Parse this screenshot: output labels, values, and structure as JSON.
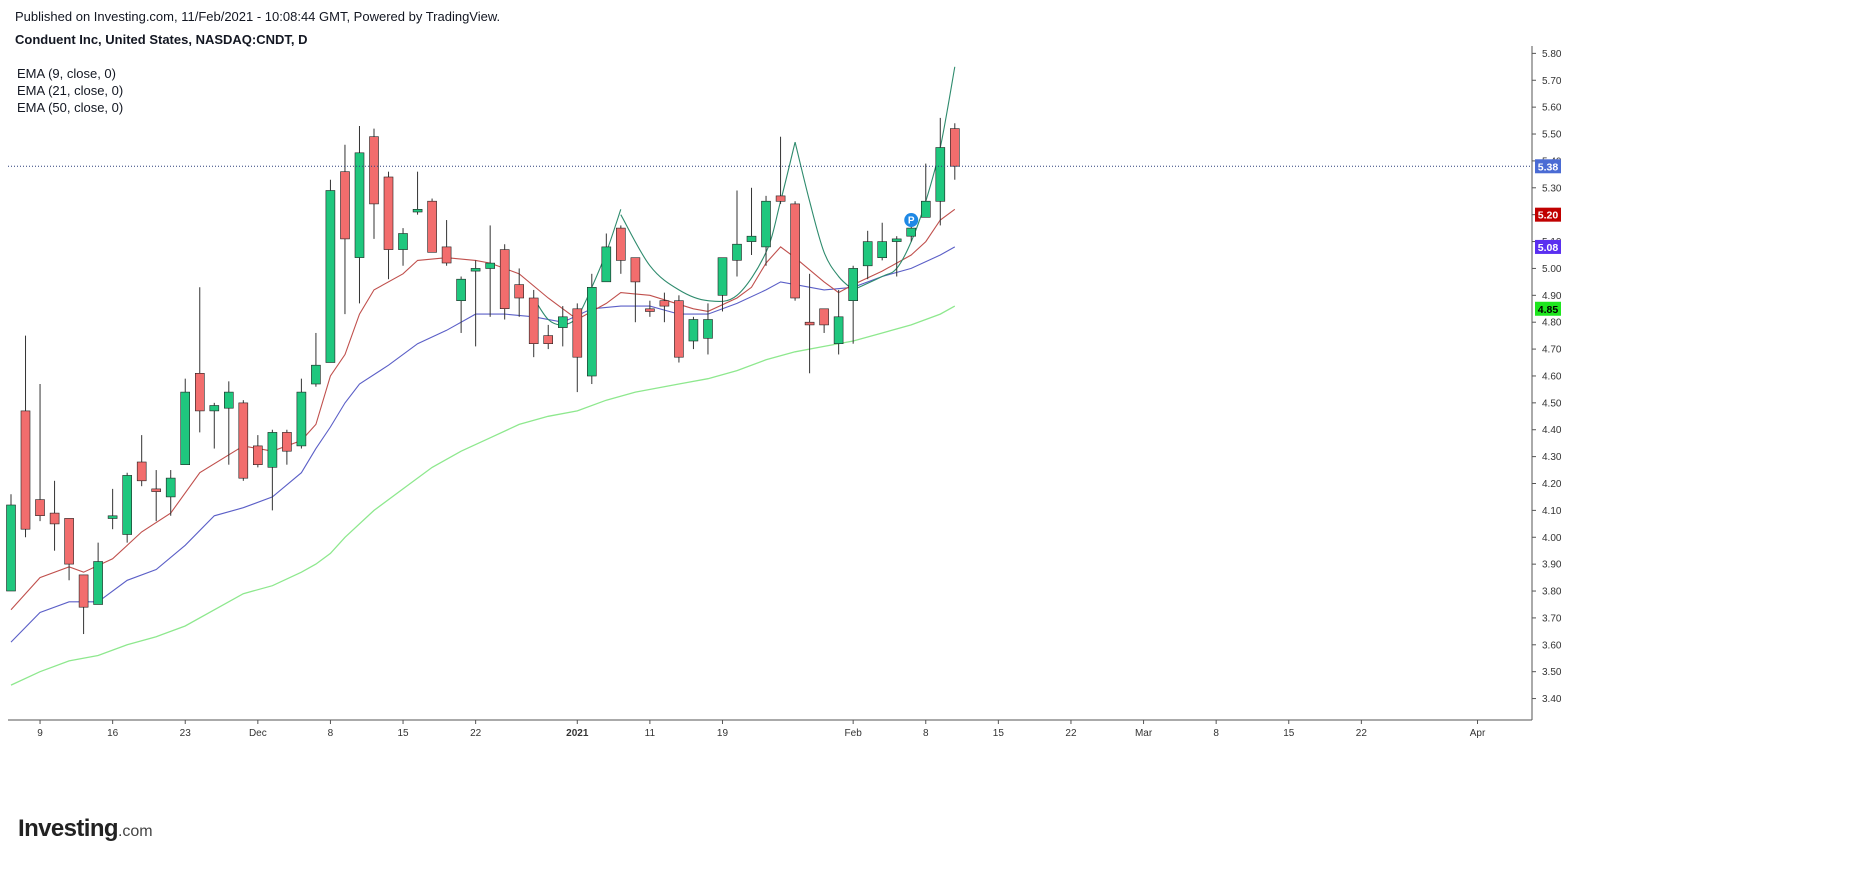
{
  "header": {
    "published": "Published on Investing.com, 11/Feb/2021 - 10:08:44 GMT, Powered by TradingView.",
    "title": "Conduent Inc, United States, NASDAQ:CNDT, D"
  },
  "legend": [
    {
      "label": "EMA (9, close, 0)",
      "color": "#2e8b6d"
    },
    {
      "label": "EMA (21, close, 0)",
      "color": "#c0504d"
    },
    {
      "label": "EMA (50, close, 0)",
      "color": "#5b5fc7"
    }
  ],
  "logo": {
    "main": "Investing",
    "suffix": ".com"
  },
  "colors": {
    "up": "#1fc77e",
    "down": "#f26d6d",
    "wick": "#333333",
    "ema9": "#2e8b6d",
    "ema21": "#c0504d",
    "ema50": "#5b5fc7",
    "ema200": "#8ee88e",
    "last_line": "#2c3e7a"
  },
  "chart_data": {
    "type": "candlestick",
    "title": "Conduent Inc, United States, NASDAQ:CNDT, D",
    "ylim": [
      3.35,
      5.82
    ],
    "y_ticks": [
      3.4,
      3.5,
      3.6,
      3.7,
      3.8,
      3.9,
      4.0,
      4.1,
      4.2,
      4.3,
      4.4,
      4.5,
      4.6,
      4.7,
      4.8,
      4.9,
      5.0,
      5.1,
      5.2,
      5.3,
      5.4,
      5.5,
      5.6,
      5.7,
      5.8
    ],
    "x_labels": [
      {
        "label": "9",
        "i": 2,
        "bold": false
      },
      {
        "label": "16",
        "i": 7,
        "bold": false
      },
      {
        "label": "23",
        "i": 12,
        "bold": false
      },
      {
        "label": "Dec",
        "i": 17,
        "bold": false
      },
      {
        "label": "8",
        "i": 22,
        "bold": false
      },
      {
        "label": "15",
        "i": 27,
        "bold": false
      },
      {
        "label": "22",
        "i": 32,
        "bold": false
      },
      {
        "label": "2021",
        "i": 39,
        "bold": true
      },
      {
        "label": "11",
        "i": 44,
        "bold": false
      },
      {
        "label": "19",
        "i": 49,
        "bold": false
      },
      {
        "label": "Feb",
        "i": 58,
        "bold": false
      },
      {
        "label": "8",
        "i": 63,
        "bold": false
      },
      {
        "label": "15",
        "i": 68,
        "bold": false
      },
      {
        "label": "22",
        "i": 73,
        "bold": false
      },
      {
        "label": "Mar",
        "i": 78,
        "bold": false
      },
      {
        "label": "8",
        "i": 83,
        "bold": false
      },
      {
        "label": "15",
        "i": 88,
        "bold": false
      },
      {
        "label": "22",
        "i": 93,
        "bold": false
      },
      {
        "label": "Apr",
        "i": 101,
        "bold": false
      }
    ],
    "candles": [
      {
        "o": 3.8,
        "h": 4.16,
        "l": 3.8,
        "c": 4.12
      },
      {
        "o": 4.47,
        "h": 4.75,
        "l": 4.0,
        "c": 4.03
      },
      {
        "o": 4.14,
        "h": 4.57,
        "l": 4.06,
        "c": 4.08
      },
      {
        "o": 4.09,
        "h": 4.21,
        "l": 3.95,
        "c": 4.05
      },
      {
        "o": 4.07,
        "h": 4.07,
        "l": 3.84,
        "c": 3.9
      },
      {
        "o": 3.86,
        "h": 3.86,
        "l": 3.64,
        "c": 3.74
      },
      {
        "o": 3.75,
        "h": 3.98,
        "l": 3.75,
        "c": 3.91
      },
      {
        "o": 4.07,
        "h": 4.18,
        "l": 4.03,
        "c": 4.08
      },
      {
        "o": 4.01,
        "h": 4.24,
        "l": 3.98,
        "c": 4.23
      },
      {
        "o": 4.28,
        "h": 4.38,
        "l": 4.19,
        "c": 4.21
      },
      {
        "o": 4.18,
        "h": 4.25,
        "l": 4.06,
        "c": 4.17
      },
      {
        "o": 4.15,
        "h": 4.25,
        "l": 4.08,
        "c": 4.22
      },
      {
        "o": 4.27,
        "h": 4.59,
        "l": 4.27,
        "c": 4.54
      },
      {
        "o": 4.61,
        "h": 4.93,
        "l": 4.39,
        "c": 4.47
      },
      {
        "o": 4.47,
        "h": 4.5,
        "l": 4.33,
        "c": 4.49
      },
      {
        "o": 4.48,
        "h": 4.58,
        "l": 4.27,
        "c": 4.54
      },
      {
        "o": 4.5,
        "h": 4.51,
        "l": 4.21,
        "c": 4.22
      },
      {
        "o": 4.34,
        "h": 4.38,
        "l": 4.26,
        "c": 4.27
      },
      {
        "o": 4.26,
        "h": 4.4,
        "l": 4.1,
        "c": 4.39
      },
      {
        "o": 4.39,
        "h": 4.4,
        "l": 4.27,
        "c": 4.32
      },
      {
        "o": 4.34,
        "h": 4.59,
        "l": 4.33,
        "c": 4.54
      },
      {
        "o": 4.57,
        "h": 4.76,
        "l": 4.56,
        "c": 4.64
      },
      {
        "o": 4.65,
        "h": 5.33,
        "l": 4.65,
        "c": 5.29
      },
      {
        "o": 5.36,
        "h": 5.46,
        "l": 4.83,
        "c": 5.11
      },
      {
        "o": 5.04,
        "h": 5.53,
        "l": 4.87,
        "c": 5.43
      },
      {
        "o": 5.49,
        "h": 5.52,
        "l": 5.11,
        "c": 5.24
      },
      {
        "o": 5.34,
        "h": 5.36,
        "l": 4.96,
        "c": 5.07
      },
      {
        "o": 5.07,
        "h": 5.15,
        "l": 5.01,
        "c": 5.13
      },
      {
        "o": 5.21,
        "h": 5.36,
        "l": 5.2,
        "c": 5.22
      },
      {
        "o": 5.25,
        "h": 5.26,
        "l": 5.06,
        "c": 5.06
      },
      {
        "o": 5.08,
        "h": 5.18,
        "l": 5.01,
        "c": 5.02
      },
      {
        "o": 4.88,
        "h": 4.97,
        "l": 4.76,
        "c": 4.96
      },
      {
        "o": 4.99,
        "h": 5.03,
        "l": 4.71,
        "c": 5.0
      },
      {
        "o": 5.0,
        "h": 5.16,
        "l": 4.82,
        "c": 5.02
      },
      {
        "o": 5.07,
        "h": 5.09,
        "l": 4.81,
        "c": 4.85
      },
      {
        "o": 4.94,
        "h": 5.0,
        "l": 4.82,
        "c": 4.89
      },
      {
        "o": 4.89,
        "h": 4.92,
        "l": 4.67,
        "c": 4.72
      },
      {
        "o": 4.75,
        "h": 4.79,
        "l": 4.7,
        "c": 4.72
      },
      {
        "o": 4.78,
        "h": 4.86,
        "l": 4.71,
        "c": 4.82
      },
      {
        "o": 4.85,
        "h": 4.87,
        "l": 4.54,
        "c": 4.67
      },
      {
        "o": 4.6,
        "h": 4.98,
        "l": 4.57,
        "c": 4.93
      },
      {
        "o": 4.95,
        "h": 5.13,
        "l": 4.95,
        "c": 5.08
      },
      {
        "o": 5.15,
        "h": 5.16,
        "l": 4.98,
        "c": 5.03
      },
      {
        "o": 5.04,
        "h": 5.04,
        "l": 4.8,
        "c": 4.95
      },
      {
        "o": 4.85,
        "h": 4.88,
        "l": 4.82,
        "c": 4.84
      },
      {
        "o": 4.88,
        "h": 4.91,
        "l": 4.8,
        "c": 4.86
      },
      {
        "o": 4.88,
        "h": 4.9,
        "l": 4.65,
        "c": 4.67
      },
      {
        "o": 4.73,
        "h": 4.82,
        "l": 4.7,
        "c": 4.81
      },
      {
        "o": 4.74,
        "h": 4.87,
        "l": 4.68,
        "c": 4.81
      },
      {
        "o": 4.9,
        "h": 5.04,
        "l": 4.84,
        "c": 5.04
      },
      {
        "o": 5.03,
        "h": 5.29,
        "l": 4.97,
        "c": 5.09
      },
      {
        "o": 5.1,
        "h": 5.3,
        "l": 5.05,
        "c": 5.12
      },
      {
        "o": 5.08,
        "h": 5.27,
        "l": 5.01,
        "c": 5.25
      },
      {
        "o": 5.27,
        "h": 5.49,
        "l": 5.24,
        "c": 5.25
      },
      {
        "o": 5.24,
        "h": 5.25,
        "l": 4.88,
        "c": 4.89
      },
      {
        "o": 4.8,
        "h": 4.98,
        "l": 4.61,
        "c": 4.79
      },
      {
        "o": 4.85,
        "h": 4.85,
        "l": 4.76,
        "c": 4.79
      },
      {
        "o": 4.72,
        "h": 4.92,
        "l": 4.68,
        "c": 4.82
      },
      {
        "o": 4.88,
        "h": 5.01,
        "l": 4.72,
        "c": 5.0
      },
      {
        "o": 5.01,
        "h": 5.14,
        "l": 4.96,
        "c": 5.1
      },
      {
        "o": 5.04,
        "h": 5.17,
        "l": 5.03,
        "c": 5.1
      },
      {
        "o": 5.1,
        "h": 5.12,
        "l": 4.97,
        "c": 5.11
      },
      {
        "o": 5.12,
        "h": 5.19,
        "l": 5.1,
        "c": 5.15
      },
      {
        "o": 5.19,
        "h": 5.39,
        "l": 5.19,
        "c": 5.25
      },
      {
        "o": 5.25,
        "h": 5.56,
        "l": 5.16,
        "c": 5.45
      },
      {
        "o": 5.52,
        "h": 5.54,
        "l": 5.33,
        "c": 5.38
      }
    ],
    "ema9": [
      [
        0,
        3.73
      ],
      [
        2,
        3.85
      ],
      [
        4,
        3.89
      ],
      [
        5,
        3.87
      ],
      [
        7,
        3.92
      ],
      [
        9,
        4.02
      ],
      [
        11,
        4.09
      ],
      [
        13,
        4.24
      ],
      [
        16,
        4.34
      ],
      [
        18,
        4.32
      ],
      [
        20,
        4.36
      ],
      [
        21,
        4.42
      ],
      [
        22,
        4.6
      ],
      [
        23,
        4.68
      ],
      [
        24,
        4.83
      ],
      [
        25,
        4.92
      ],
      [
        27,
        4.98
      ],
      [
        28,
        5.03
      ],
      [
        30,
        5.04
      ],
      [
        32,
        5.03
      ],
      [
        33,
        5.02
      ],
      [
        35,
        4.98
      ],
      [
        37,
        4.89
      ],
      [
        38,
        4.85
      ],
      [
        39,
        4.81
      ],
      [
        40,
        4.84
      ],
      [
        41,
        4.87
      ],
      [
        42,
        4.91
      ],
      [
        44,
        4.9
      ],
      [
        47,
        4.85
      ],
      [
        48,
        4.84
      ],
      [
        50,
        4.89
      ],
      [
        51,
        4.93
      ],
      [
        52,
        5.02
      ],
      [
        53,
        5.08
      ],
      [
        54,
        5.04
      ],
      [
        56,
        4.95
      ],
      [
        57,
        4.91
      ],
      [
        58,
        4.94
      ],
      [
        60,
        4.99
      ],
      [
        62,
        5.05
      ],
      [
        63,
        5.1
      ],
      [
        64,
        5.18
      ],
      [
        65,
        5.22
      ]
    ],
    "ema21": [
      [
        0,
        3.61
      ],
      [
        2,
        3.72
      ],
      [
        4,
        3.76
      ],
      [
        6,
        3.76
      ],
      [
        8,
        3.84
      ],
      [
        10,
        3.88
      ],
      [
        12,
        3.97
      ],
      [
        14,
        4.08
      ],
      [
        16,
        4.11
      ],
      [
        18,
        4.15
      ],
      [
        20,
        4.24
      ],
      [
        21,
        4.33
      ],
      [
        22,
        4.41
      ],
      [
        23,
        4.5
      ],
      [
        24,
        4.57
      ],
      [
        26,
        4.64
      ],
      [
        28,
        4.72
      ],
      [
        30,
        4.77
      ],
      [
        32,
        4.83
      ],
      [
        34,
        4.83
      ],
      [
        36,
        4.82
      ],
      [
        38,
        4.8
      ],
      [
        40,
        4.85
      ],
      [
        42,
        4.86
      ],
      [
        44,
        4.86
      ],
      [
        46,
        4.83
      ],
      [
        48,
        4.83
      ],
      [
        50,
        4.87
      ],
      [
        52,
        4.92
      ],
      [
        53,
        4.95
      ],
      [
        54,
        4.94
      ],
      [
        56,
        4.92
      ],
      [
        58,
        4.93
      ],
      [
        60,
        4.97
      ],
      [
        62,
        5.0
      ],
      [
        64,
        5.05
      ],
      [
        65,
        5.08
      ]
    ],
    "ema200": [
      [
        0,
        3.45
      ],
      [
        2,
        3.5
      ],
      [
        4,
        3.54
      ],
      [
        6,
        3.56
      ],
      [
        8,
        3.6
      ],
      [
        10,
        3.63
      ],
      [
        12,
        3.67
      ],
      [
        14,
        3.73
      ],
      [
        16,
        3.79
      ],
      [
        18,
        3.82
      ],
      [
        20,
        3.87
      ],
      [
        21,
        3.9
      ],
      [
        22,
        3.94
      ],
      [
        23,
        4.0
      ],
      [
        25,
        4.1
      ],
      [
        27,
        4.18
      ],
      [
        29,
        4.26
      ],
      [
        31,
        4.32
      ],
      [
        33,
        4.37
      ],
      [
        35,
        4.42
      ],
      [
        37,
        4.45
      ],
      [
        39,
        4.47
      ],
      [
        41,
        4.51
      ],
      [
        43,
        4.54
      ],
      [
        46,
        4.57
      ],
      [
        48,
        4.59
      ],
      [
        50,
        4.62
      ],
      [
        52,
        4.66
      ],
      [
        54,
        4.69
      ],
      [
        56,
        4.71
      ],
      [
        58,
        4.73
      ],
      [
        60,
        4.76
      ],
      [
        62,
        4.79
      ],
      [
        64,
        4.83
      ],
      [
        65,
        4.86
      ]
    ],
    "arcs": [
      {
        "points": [
          [
            36,
            4.89
          ],
          [
            37,
            4.81
          ],
          [
            38,
            4.79
          ],
          [
            39,
            4.82
          ],
          [
            40,
            4.93
          ],
          [
            41,
            5.06
          ],
          [
            42,
            5.22
          ]
        ]
      },
      {
        "points": [
          [
            42,
            5.2
          ],
          [
            44,
            5.01
          ],
          [
            46,
            4.92
          ],
          [
            48,
            4.88
          ],
          [
            50,
            4.9
          ],
          [
            52,
            5.06
          ],
          [
            53,
            5.25
          ],
          [
            54,
            5.47
          ]
        ]
      },
      {
        "points": [
          [
            54,
            5.47
          ],
          [
            55,
            5.25
          ],
          [
            56,
            5.06
          ],
          [
            57,
            4.97
          ],
          [
            58,
            4.92
          ]
        ]
      },
      {
        "points": [
          [
            58,
            4.92
          ],
          [
            60,
            4.97
          ],
          [
            61,
            5.0
          ],
          [
            62,
            5.1
          ],
          [
            63,
            5.25
          ],
          [
            64,
            5.45
          ],
          [
            65,
            5.75
          ]
        ]
      }
    ],
    "last_price_line": 5.38,
    "price_labels": [
      {
        "value": 5.38,
        "text": "5.38",
        "bg": "#4a6bd4",
        "fg": "#ffffff"
      },
      {
        "value": 5.2,
        "text": "5.20",
        "bg": "#c00000",
        "fg": "#ffffff"
      },
      {
        "value": 5.08,
        "text": "5.08",
        "bg": "#5a2ff0",
        "fg": "#ffffff"
      },
      {
        "value": 4.85,
        "text": "4.85",
        "bg": "#1ee61e",
        "fg": "#000000"
      }
    ],
    "marker": {
      "i": 62,
      "value": 5.18,
      "label": "P"
    }
  }
}
